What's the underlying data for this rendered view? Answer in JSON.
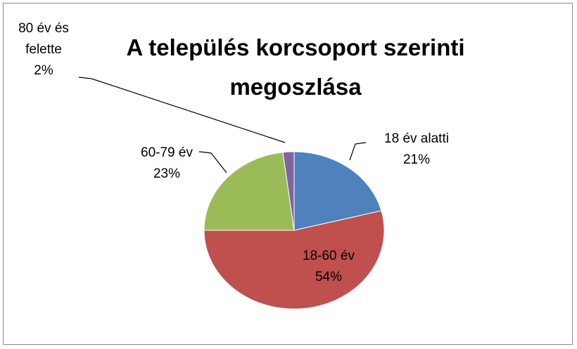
{
  "chart_data": {
    "type": "pie",
    "title": "A település korcsoport szerinti megoszlása",
    "categories": [
      "18 év alatti",
      "18-60 év",
      "60-79 év",
      "80 év és felette"
    ],
    "values": [
      21,
      54,
      23,
      2
    ],
    "value_labels": [
      "21%",
      "54%",
      "23%",
      "2%"
    ],
    "colors": [
      "#4f81bd",
      "#c0504d",
      "#9bbb59",
      "#8064a2"
    ]
  }
}
